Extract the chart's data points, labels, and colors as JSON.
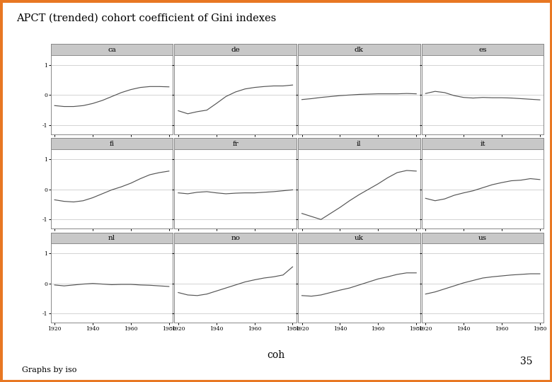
{
  "title": "APCT (trended) cohort coefficient of Gini indexes",
  "page_number": "35",
  "xlabel": "coh",
  "footer": "Graphs by iso",
  "countries": [
    "ca",
    "de",
    "dk",
    "es",
    "fi",
    "fr",
    "il",
    "it",
    "nl",
    "no",
    "uk",
    "us"
  ],
  "x_range": [
    1918,
    1982
  ],
  "y_range": [
    -1.3,
    1.3
  ],
  "y_ticks": [
    -1,
    0,
    1
  ],
  "x_ticks": [
    1920,
    1940,
    1960,
    1980
  ],
  "line_color": "#555555",
  "background_color": "#ffffff",
  "panel_bg": "#ffffff",
  "header_bg": "#c8c8c8",
  "header_dark": "#888888",
  "outer_border_color": "#e87722",
  "grid_color": "#cccccc",
  "series": {
    "ca": {
      "x": [
        1920,
        1925,
        1930,
        1935,
        1940,
        1945,
        1950,
        1955,
        1960,
        1965,
        1970,
        1975,
        1980
      ],
      "y": [
        -0.35,
        -0.38,
        -0.38,
        -0.35,
        -0.28,
        -0.18,
        -0.05,
        0.08,
        0.18,
        0.25,
        0.28,
        0.28,
        0.27
      ]
    },
    "de": {
      "x": [
        1920,
        1925,
        1930,
        1935,
        1940,
        1945,
        1950,
        1955,
        1960,
        1965,
        1970,
        1975,
        1980
      ],
      "y": [
        -0.52,
        -0.62,
        -0.55,
        -0.5,
        -0.28,
        -0.05,
        0.1,
        0.2,
        0.25,
        0.28,
        0.3,
        0.3,
        0.33
      ]
    },
    "dk": {
      "x": [
        1920,
        1925,
        1930,
        1935,
        1940,
        1945,
        1950,
        1955,
        1960,
        1965,
        1970,
        1975,
        1980
      ],
      "y": [
        -0.15,
        -0.12,
        -0.08,
        -0.05,
        -0.02,
        0.0,
        0.02,
        0.03,
        0.04,
        0.04,
        0.04,
        0.05,
        0.04
      ]
    },
    "es": {
      "x": [
        1920,
        1925,
        1930,
        1935,
        1940,
        1945,
        1950,
        1955,
        1960,
        1965,
        1970,
        1975,
        1980
      ],
      "y": [
        0.05,
        0.12,
        0.08,
        -0.02,
        -0.08,
        -0.1,
        -0.08,
        -0.09,
        -0.09,
        -0.1,
        -0.12,
        -0.14,
        -0.16
      ]
    },
    "fi": {
      "x": [
        1920,
        1925,
        1930,
        1935,
        1940,
        1945,
        1950,
        1955,
        1960,
        1965,
        1970,
        1975,
        1980
      ],
      "y": [
        -0.35,
        -0.4,
        -0.42,
        -0.38,
        -0.28,
        -0.15,
        -0.02,
        0.08,
        0.2,
        0.35,
        0.48,
        0.55,
        0.6
      ]
    },
    "fr": {
      "x": [
        1920,
        1925,
        1930,
        1935,
        1940,
        1945,
        1950,
        1955,
        1960,
        1965,
        1970,
        1975,
        1980
      ],
      "y": [
        -0.12,
        -0.15,
        -0.1,
        -0.08,
        -0.12,
        -0.15,
        -0.13,
        -0.12,
        -0.12,
        -0.1,
        -0.08,
        -0.05,
        -0.02
      ]
    },
    "il": {
      "x": [
        1920,
        1925,
        1930,
        1935,
        1940,
        1945,
        1950,
        1955,
        1960,
        1965,
        1970,
        1975,
        1980
      ],
      "y": [
        -0.8,
        -0.9,
        -1.0,
        -0.8,
        -0.6,
        -0.38,
        -0.18,
        0.0,
        0.18,
        0.38,
        0.55,
        0.62,
        0.6
      ]
    },
    "it": {
      "x": [
        1920,
        1925,
        1930,
        1935,
        1940,
        1945,
        1950,
        1955,
        1960,
        1965,
        1970,
        1975,
        1980
      ],
      "y": [
        -0.3,
        -0.38,
        -0.32,
        -0.2,
        -0.12,
        -0.05,
        0.05,
        0.15,
        0.22,
        0.28,
        0.3,
        0.35,
        0.32
      ]
    },
    "nl": {
      "x": [
        1920,
        1925,
        1930,
        1935,
        1940,
        1945,
        1950,
        1955,
        1960,
        1965,
        1970,
        1975,
        1980
      ],
      "y": [
        -0.05,
        -0.08,
        -0.05,
        -0.02,
        0.0,
        -0.02,
        -0.04,
        -0.03,
        -0.03,
        -0.05,
        -0.06,
        -0.08,
        -0.1
      ]
    },
    "no": {
      "x": [
        1920,
        1925,
        1930,
        1935,
        1940,
        1945,
        1950,
        1955,
        1960,
        1965,
        1970,
        1975,
        1980
      ],
      "y": [
        -0.3,
        -0.38,
        -0.4,
        -0.35,
        -0.25,
        -0.15,
        -0.05,
        0.05,
        0.12,
        0.18,
        0.22,
        0.28,
        0.55
      ]
    },
    "uk": {
      "x": [
        1920,
        1925,
        1930,
        1935,
        1940,
        1945,
        1950,
        1955,
        1960,
        1965,
        1970,
        1975,
        1980
      ],
      "y": [
        -0.4,
        -0.42,
        -0.38,
        -0.3,
        -0.22,
        -0.15,
        -0.05,
        0.05,
        0.15,
        0.22,
        0.3,
        0.35,
        0.35
      ]
    },
    "us": {
      "x": [
        1920,
        1925,
        1930,
        1935,
        1940,
        1945,
        1950,
        1955,
        1960,
        1965,
        1970,
        1975,
        1980
      ],
      "y": [
        -0.35,
        -0.28,
        -0.18,
        -0.08,
        0.02,
        0.1,
        0.18,
        0.22,
        0.25,
        0.28,
        0.3,
        0.32,
        0.32
      ]
    }
  }
}
